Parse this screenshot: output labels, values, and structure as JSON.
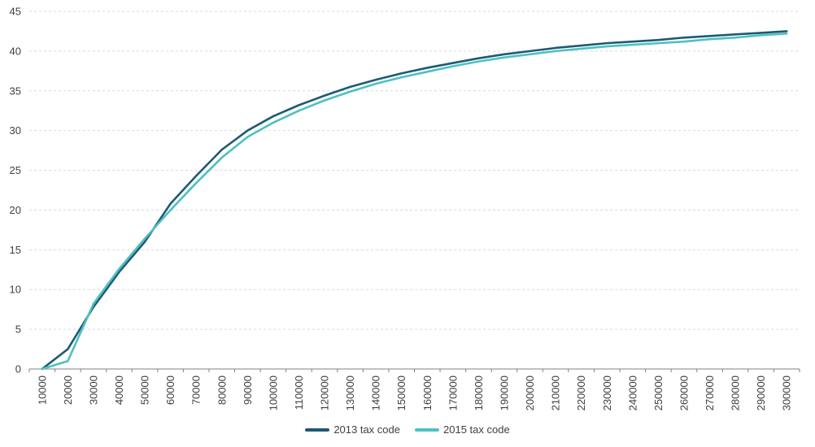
{
  "chart_data": {
    "type": "line",
    "title": "",
    "xlabel": "",
    "ylabel": "",
    "categories": [
      10000,
      20000,
      30000,
      40000,
      50000,
      60000,
      70000,
      80000,
      90000,
      100000,
      110000,
      120000,
      130000,
      140000,
      150000,
      160000,
      170000,
      180000,
      190000,
      200000,
      210000,
      220000,
      230000,
      240000,
      250000,
      260000,
      270000,
      280000,
      290000,
      300000
    ],
    "series": [
      {
        "name": "2013 tax code",
        "color": "#1d5a73",
        "values": [
          0,
          2.5,
          7.8,
          12.2,
          16.0,
          20.8,
          24.3,
          27.6,
          30.0,
          31.8,
          33.2,
          34.4,
          35.5,
          36.4,
          37.2,
          37.9,
          38.5,
          39.1,
          39.6,
          40.0,
          40.4,
          40.7,
          41.0,
          41.2,
          41.4,
          41.7,
          41.9,
          42.1,
          42.3,
          42.5
        ]
      },
      {
        "name": "2015 tax code",
        "color": "#4ec0c1",
        "values": [
          0,
          1.0,
          8.2,
          12.6,
          16.4,
          20.0,
          23.4,
          26.6,
          29.2,
          31.0,
          32.5,
          33.8,
          34.9,
          35.9,
          36.7,
          37.4,
          38.1,
          38.7,
          39.2,
          39.6,
          40.0,
          40.3,
          40.6,
          40.8,
          41.0,
          41.2,
          41.5,
          41.7,
          42.0,
          42.2
        ]
      }
    ],
    "ylim": [
      0,
      45
    ],
    "ytick_step": 5,
    "grid": "horizontal-dashed",
    "legend_position": "bottom-center",
    "x_label_rotation_deg": -90
  },
  "colors": {
    "gridline": "#d9d9d9",
    "axis_line": "#808080",
    "tick_label": "#404040",
    "background": "#ffffff"
  }
}
